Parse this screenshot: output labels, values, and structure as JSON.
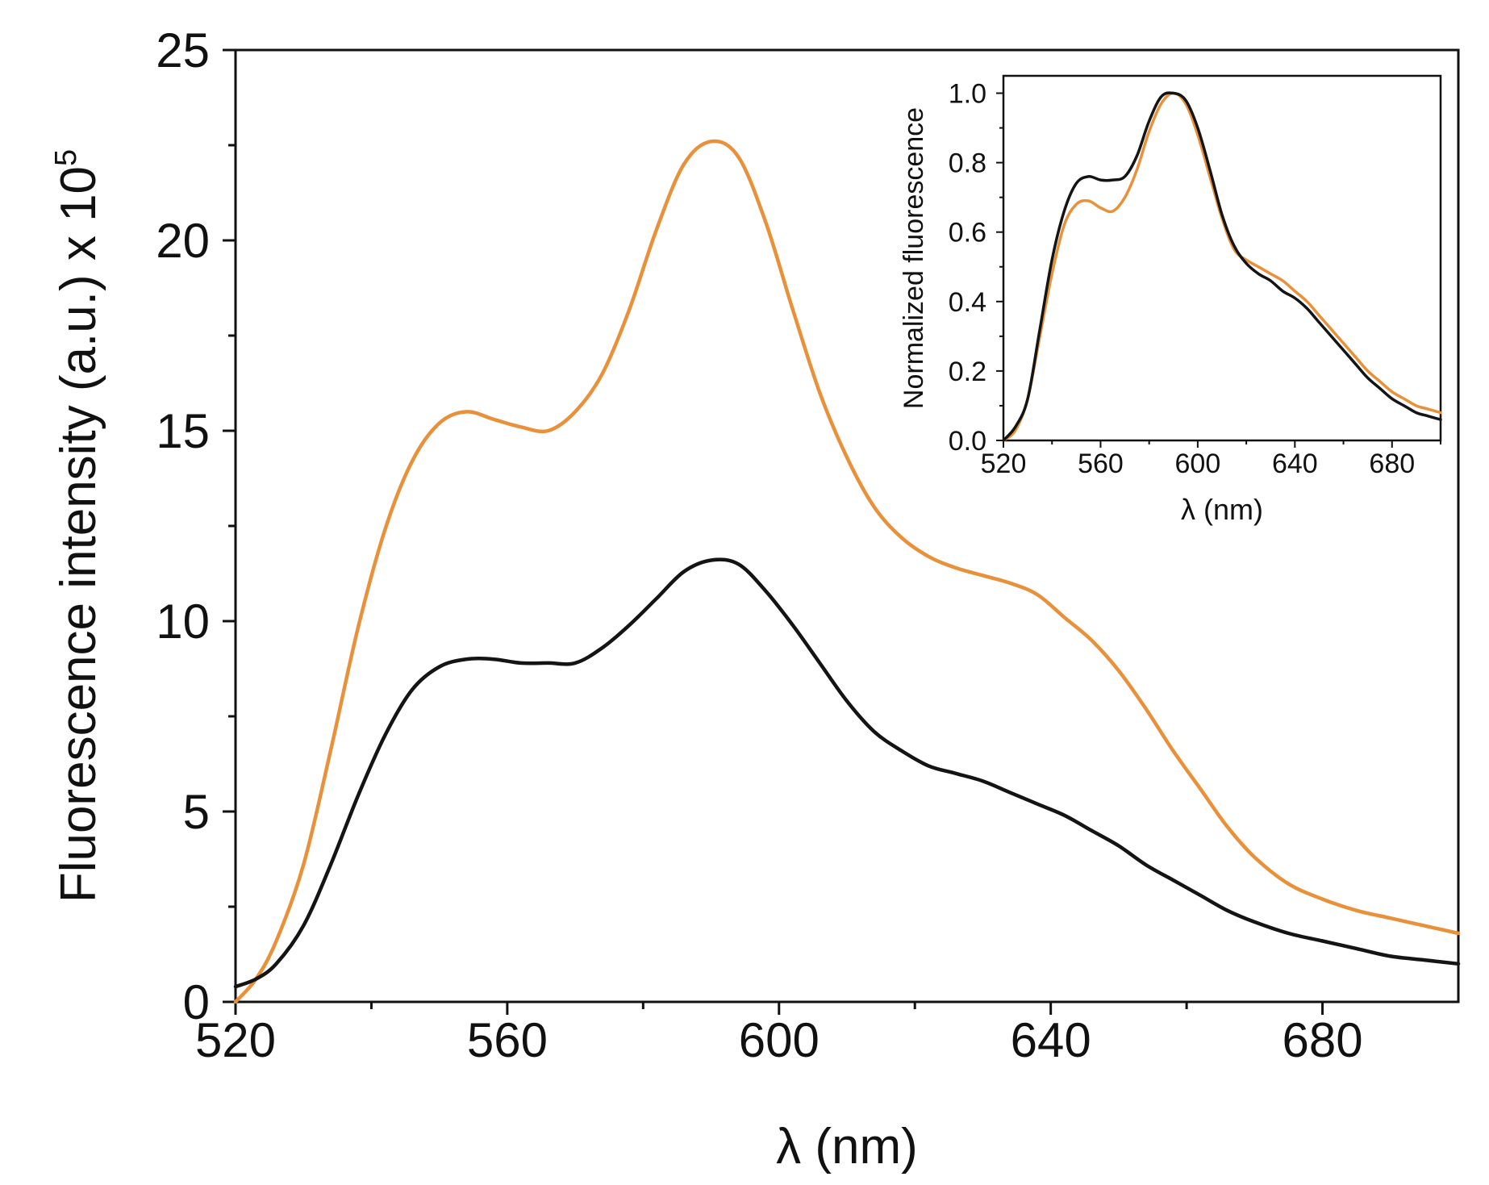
{
  "chart_data": [
    {
      "id": "main",
      "type": "line",
      "title": "",
      "xlabel": "λ (nm)",
      "ylabel_text": "Fluorescence intensity (a.u.) x 10",
      "ylabel_exponent": "5",
      "xlim": [
        520,
        700
      ],
      "ylim": [
        0,
        25
      ],
      "xticks": [
        520,
        560,
        600,
        640,
        680
      ],
      "xticks_minor": [
        540,
        580,
        620,
        660
      ],
      "yticks": [
        0,
        5,
        10,
        15,
        20,
        25
      ],
      "yticks_minor": [
        2.5,
        7.5,
        12.5,
        17.5,
        22.5
      ],
      "grid": false,
      "series": [
        {
          "name": "orange",
          "color": "#E8913A",
          "x": [
            520,
            523,
            526,
            530,
            534,
            538,
            542,
            546,
            550,
            554,
            558,
            562,
            566,
            570,
            574,
            578,
            582,
            586,
            590,
            594,
            598,
            602,
            606,
            610,
            614,
            618,
            622,
            626,
            630,
            634,
            638,
            642,
            646,
            650,
            654,
            658,
            662,
            666,
            670,
            675,
            680,
            685,
            690,
            695,
            700
          ],
          "y": [
            0.0,
            0.6,
            1.6,
            3.6,
            6.6,
            9.8,
            12.4,
            14.2,
            15.2,
            15.5,
            15.3,
            15.1,
            15.0,
            15.5,
            16.5,
            18.2,
            20.3,
            22.0,
            22.6,
            22.2,
            20.5,
            18.2,
            16.0,
            14.3,
            13.0,
            12.2,
            11.7,
            11.4,
            11.2,
            11.0,
            10.7,
            10.1,
            9.5,
            8.7,
            7.7,
            6.6,
            5.6,
            4.6,
            3.8,
            3.1,
            2.7,
            2.4,
            2.2,
            2.0,
            1.8
          ]
        },
        {
          "name": "black",
          "color": "#141414",
          "x": [
            520,
            523,
            526,
            530,
            534,
            538,
            542,
            546,
            550,
            554,
            558,
            562,
            566,
            570,
            574,
            578,
            582,
            586,
            590,
            594,
            598,
            602,
            606,
            610,
            614,
            618,
            622,
            626,
            630,
            634,
            638,
            642,
            646,
            650,
            654,
            658,
            662,
            666,
            670,
            675,
            680,
            685,
            690,
            695,
            700
          ],
          "y": [
            0.4,
            0.6,
            1.0,
            2.0,
            3.6,
            5.4,
            7.0,
            8.2,
            8.8,
            9.0,
            9.0,
            8.9,
            8.9,
            8.9,
            9.3,
            9.9,
            10.6,
            11.3,
            11.6,
            11.5,
            10.8,
            9.9,
            8.9,
            7.9,
            7.1,
            6.6,
            6.2,
            6.0,
            5.8,
            5.5,
            5.2,
            4.9,
            4.5,
            4.1,
            3.6,
            3.2,
            2.8,
            2.4,
            2.1,
            1.8,
            1.6,
            1.4,
            1.2,
            1.1,
            1.0
          ]
        }
      ]
    },
    {
      "id": "inset",
      "type": "line",
      "title": "",
      "xlabel": "λ (nm)",
      "ylabel": "Normalized fluorescence",
      "xlim": [
        520,
        700
      ],
      "ylim": [
        0,
        1.05
      ],
      "xticks": [
        520,
        560,
        600,
        640,
        680
      ],
      "xticks_minor": [
        540,
        580,
        620,
        660,
        700
      ],
      "ytick_values": [
        0,
        0.2,
        0.4,
        0.6,
        0.8,
        1.0
      ],
      "ytick_labels": [
        "0.0",
        "0.2",
        "0.4",
        "0.6",
        "0.8",
        "1.0"
      ],
      "yticks_minor": [
        0.1,
        0.3,
        0.5,
        0.7,
        0.9
      ],
      "grid": false,
      "series": [
        {
          "name": "orange",
          "color": "#E8913A",
          "x": [
            520,
            525,
            530,
            535,
            540,
            545,
            550,
            555,
            560,
            565,
            570,
            575,
            580,
            585,
            590,
            595,
            600,
            605,
            610,
            615,
            620,
            625,
            630,
            635,
            640,
            645,
            650,
            655,
            660,
            665,
            670,
            675,
            680,
            685,
            690,
            695,
            700
          ],
          "y": [
            0.0,
            0.03,
            0.12,
            0.3,
            0.48,
            0.62,
            0.68,
            0.69,
            0.67,
            0.66,
            0.7,
            0.78,
            0.89,
            0.97,
            1.0,
            0.97,
            0.88,
            0.76,
            0.64,
            0.55,
            0.52,
            0.5,
            0.48,
            0.46,
            0.43,
            0.4,
            0.36,
            0.32,
            0.28,
            0.24,
            0.2,
            0.17,
            0.14,
            0.12,
            0.1,
            0.09,
            0.08
          ]
        },
        {
          "name": "black",
          "color": "#141414",
          "x": [
            520,
            525,
            530,
            535,
            540,
            545,
            550,
            555,
            560,
            565,
            570,
            575,
            580,
            585,
            590,
            595,
            600,
            605,
            610,
            615,
            620,
            625,
            630,
            635,
            640,
            645,
            650,
            655,
            660,
            665,
            670,
            675,
            680,
            685,
            690,
            695,
            700
          ],
          "y": [
            0.0,
            0.04,
            0.12,
            0.32,
            0.52,
            0.66,
            0.74,
            0.76,
            0.75,
            0.75,
            0.76,
            0.82,
            0.92,
            0.99,
            1.0,
            0.98,
            0.9,
            0.78,
            0.65,
            0.56,
            0.51,
            0.48,
            0.46,
            0.43,
            0.41,
            0.38,
            0.34,
            0.3,
            0.26,
            0.22,
            0.18,
            0.15,
            0.12,
            0.1,
            0.08,
            0.07,
            0.06
          ]
        }
      ]
    }
  ]
}
